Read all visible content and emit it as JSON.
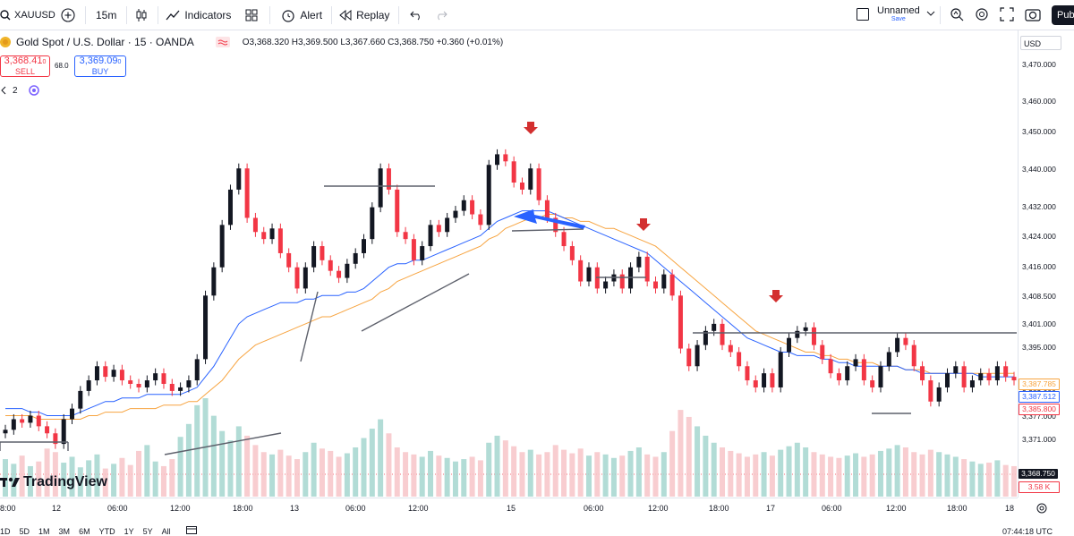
{
  "toolbar": {
    "symbol": "XAUUSD",
    "interval": "15m",
    "indicators_label": "Indicators",
    "alert_label": "Alert",
    "replay_label": "Replay",
    "layout_name": "Unnamed",
    "layout_status": "Save",
    "publish_label": "Publ"
  },
  "legend": {
    "title": "Gold Spot / U.S. Dollar · 15 · OANDA",
    "open_label": "O",
    "open": "3,368.320",
    "high_label": "H",
    "high": "3,369.500",
    "low_label": "L",
    "low": "3,367.660",
    "close_label": "C",
    "close": "3,368.750",
    "change": "+0.360 (+0.01%)",
    "sell_price": "3,368.41",
    "sell_price_small": "0",
    "sell_label": "SELL",
    "spread": "68.0",
    "buy_price": "3,369.09",
    "buy_price_small": "0",
    "buy_label": "BUY",
    "indicator_count": "2",
    "currency": "USD"
  },
  "price_axis": {
    "ticks": [
      "3,470.000",
      "3,460.000",
      "3,450.000",
      "3,440.000",
      "3,432.000",
      "3,424.000",
      "3,416.000",
      "3,408.500",
      "3,401.000",
      "3,395.000",
      "3,383.000",
      "3,377.000",
      "3,371.000"
    ],
    "badges": [
      {
        "value": "3,387.785",
        "color": "#f7a440",
        "text": "#f7a440"
      },
      {
        "value": "3,387.512",
        "color": "#2962ff",
        "text": "#2962ff"
      },
      {
        "value": "3,385.800",
        "color": "#f23645",
        "text": "#f23645"
      },
      {
        "value": "3,368.750",
        "color": "#131722",
        "text": "#ffffff"
      },
      {
        "value": "3.58 K",
        "color": "#f23645",
        "text": "#f23645"
      }
    ]
  },
  "time_axis": {
    "labels": [
      "8:00",
      "12",
      "06:00",
      "12:00",
      "18:00",
      "13",
      "06:00",
      "12:00",
      "15",
      "06:00",
      "12:00",
      "18:00",
      "17",
      "06:00",
      "12:00",
      "18:00",
      "18"
    ]
  },
  "bottom_bar": {
    "ranges": [
      "1D",
      "5D",
      "1M",
      "3M",
      "6M",
      "YTD",
      "1Y",
      "5Y",
      "All"
    ],
    "clock": "07:44:18 UTC"
  },
  "watermark": "TradingView",
  "colors": {
    "up": "#089981",
    "down": "#f23645",
    "candle_body": "#131722",
    "ema_fast": "#2962ff",
    "ema_slow": "#f7a440",
    "arrow": "#d32f2f",
    "blue_arrow": "#2962ff"
  },
  "chart_data": {
    "type": "candlestick",
    "ylim": [
      3366,
      3480
    ],
    "price_series": [
      3372,
      3375,
      3374,
      3376,
      3373,
      3371,
      3368,
      3375,
      3378,
      3383,
      3386,
      3390,
      3387,
      3389,
      3386,
      3385,
      3384,
      3386,
      3388,
      3385,
      3383,
      3384,
      3386,
      3392,
      3410,
      3418,
      3430,
      3440,
      3446,
      3432,
      3428,
      3426,
      3429,
      3422,
      3418,
      3412,
      3418,
      3424,
      3420,
      3417,
      3415,
      3419,
      3422,
      3426,
      3435,
      3446,
      3440,
      3428,
      3426,
      3420,
      3424,
      3430,
      3428,
      3432,
      3434,
      3437,
      3433,
      3430,
      3447,
      3450,
      3448,
      3442,
      3440,
      3446,
      3437,
      3432,
      3428,
      3424,
      3420,
      3414,
      3418,
      3412,
      3414,
      3416,
      3412,
      3418,
      3421,
      3414,
      3412,
      3416,
      3410,
      3395,
      3390,
      3396,
      3400,
      3402,
      3396,
      3394,
      3390,
      3386,
      3384,
      3388,
      3384,
      3394,
      3398,
      3400,
      3401,
      3396,
      3392,
      3388,
      3386,
      3390,
      3392,
      3386,
      3384,
      3390,
      3394,
      3398,
      3396,
      3390,
      3386,
      3380,
      3384,
      3388,
      3390,
      3384,
      3386,
      3388,
      3386,
      3390,
      3387,
      3386
    ],
    "volume_series": [
      3.2,
      2.8,
      3.5,
      2.6,
      3.0,
      4.1,
      3.8,
      2.9,
      3.4,
      2.5,
      3.1,
      3.6,
      2.4,
      2.8,
      3.3,
      2.7,
      3.9,
      4.4,
      3.0,
      2.6,
      3.2,
      5.1,
      6.2,
      7.8,
      8.4,
      6.9,
      5.6,
      4.8,
      6.0,
      5.2,
      4.4,
      3.8,
      3.6,
      4.0,
      3.5,
      3.2,
      3.8,
      4.6,
      4.1,
      3.9,
      3.4,
      3.7,
      4.2,
      5.0,
      5.8,
      6.6,
      5.4,
      4.2,
      3.8,
      3.6,
      3.4,
      3.9,
      3.5,
      3.3,
      3.0,
      3.2,
      3.4,
      3.1,
      4.6,
      5.2,
      4.8,
      4.3,
      3.8,
      4.0,
      3.6,
      3.8,
      4.4,
      4.0,
      3.7,
      4.1,
      3.5,
      3.8,
      3.6,
      3.3,
      3.5,
      3.9,
      4.2,
      3.6,
      3.4,
      3.8,
      5.6,
      7.4,
      6.8,
      6.0,
      5.2,
      4.6,
      4.2,
      3.9,
      3.7,
      3.4,
      3.6,
      3.8,
      3.5,
      4.0,
      4.3,
      4.6,
      4.2,
      3.8,
      3.6,
      3.4,
      3.3,
      3.5,
      3.7,
      3.4,
      3.6,
      3.9,
      4.1,
      4.4,
      4.2,
      3.8,
      3.6,
      4.0,
      3.8,
      3.6,
      3.4,
      3.2,
      3.0,
      2.8,
      2.9,
      3.1,
      2.7,
      2.6
    ],
    "ema_fast": [
      3378,
      3378,
      3378,
      3377,
      3377,
      3376,
      3376,
      3376,
      3376,
      3377,
      3378,
      3379,
      3380,
      3380,
      3381,
      3381,
      3381,
      3382,
      3382,
      3382,
      3382,
      3382,
      3383,
      3384,
      3387,
      3390,
      3394,
      3398,
      3402,
      3404,
      3405,
      3406,
      3407,
      3408,
      3408,
      3408,
      3409,
      3409,
      3410,
      3410,
      3410,
      3411,
      3411,
      3412,
      3414,
      3416,
      3418,
      3419,
      3419,
      3420,
      3420,
      3421,
      3422,
      3423,
      3424,
      3425,
      3426,
      3427,
      3429,
      3431,
      3432,
      3433,
      3434,
      3434,
      3434,
      3434,
      3433,
      3432,
      3431,
      3430,
      3429,
      3428,
      3427,
      3426,
      3425,
      3424,
      3423,
      3422,
      3420,
      3418,
      3416,
      3414,
      3412,
      3410,
      3408,
      3406,
      3404,
      3402,
      3400,
      3398,
      3397,
      3396,
      3395,
      3394,
      3394,
      3393,
      3393,
      3393,
      3392,
      3392,
      3391,
      3391,
      3390,
      3390,
      3390,
      3390,
      3390,
      3390,
      3389,
      3389,
      3388,
      3388,
      3388,
      3388,
      3388,
      3388,
      3388,
      3387,
      3387,
      3387,
      3387,
      3387
    ],
    "ema_slow": [
      3376,
      3376,
      3376,
      3376,
      3375,
      3375,
      3375,
      3375,
      3375,
      3375,
      3376,
      3376,
      3377,
      3377,
      3377,
      3378,
      3378,
      3378,
      3378,
      3379,
      3379,
      3379,
      3380,
      3380,
      3382,
      3384,
      3386,
      3389,
      3392,
      3394,
      3396,
      3397,
      3398,
      3399,
      3400,
      3401,
      3402,
      3403,
      3404,
      3404,
      3405,
      3406,
      3407,
      3408,
      3409,
      3411,
      3412,
      3414,
      3415,
      3416,
      3417,
      3418,
      3419,
      3420,
      3421,
      3422,
      3423,
      3424,
      3426,
      3427,
      3429,
      3430,
      3431,
      3432,
      3432,
      3433,
      3433,
      3432,
      3432,
      3431,
      3431,
      3430,
      3429,
      3429,
      3428,
      3427,
      3426,
      3425,
      3424,
      3422,
      3420,
      3418,
      3416,
      3414,
      3412,
      3410,
      3408,
      3406,
      3404,
      3402,
      3400,
      3399,
      3398,
      3397,
      3396,
      3395,
      3394,
      3394,
      3393,
      3393,
      3392,
      3392,
      3391,
      3391,
      3391,
      3390,
      3390,
      3390,
      3389,
      3389,
      3389,
      3388,
      3388,
      3388,
      3388,
      3388,
      3388,
      3388,
      3388,
      3388,
      3388,
      3388
    ]
  }
}
